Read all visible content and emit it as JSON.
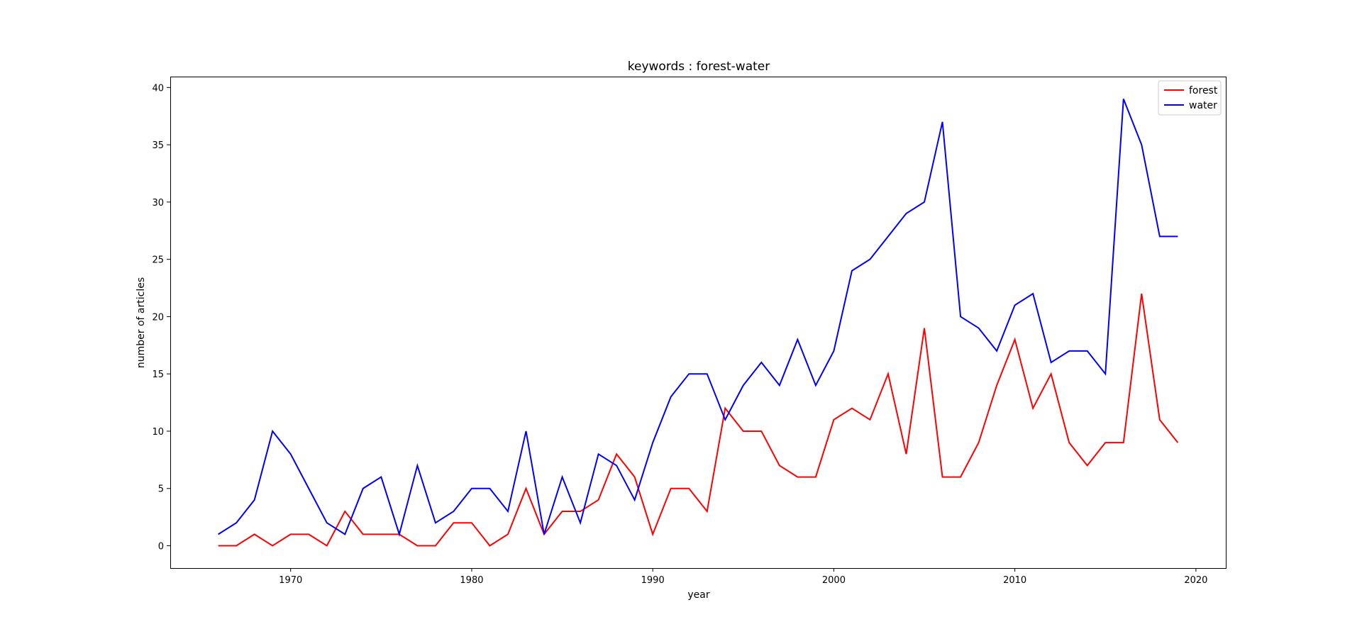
{
  "chart_data": {
    "type": "line",
    "title": "keywords : forest-water",
    "xlabel": "year",
    "ylabel": "number of articles",
    "xlim": [
      1963.35,
      2021.65
    ],
    "ylim": [
      -1.95,
      40.95
    ],
    "xticks": [
      1970,
      1980,
      1990,
      2000,
      2010,
      2020
    ],
    "yticks": [
      0,
      5,
      10,
      15,
      20,
      25,
      30,
      35,
      40
    ],
    "grid": false,
    "legend_position": "top-right",
    "x": [
      1966,
      1967,
      1968,
      1969,
      1970,
      1971,
      1972,
      1973,
      1974,
      1975,
      1976,
      1977,
      1978,
      1979,
      1980,
      1981,
      1982,
      1983,
      1984,
      1985,
      1986,
      1987,
      1988,
      1989,
      1990,
      1991,
      1992,
      1993,
      1994,
      1995,
      1996,
      1997,
      1998,
      1999,
      2000,
      2001,
      2002,
      2003,
      2004,
      2005,
      2006,
      2007,
      2008,
      2009,
      2010,
      2011,
      2012,
      2013,
      2014,
      2015,
      2016,
      2017,
      2018,
      2019
    ],
    "series": [
      {
        "name": "forest",
        "color": "#ff0000",
        "values": [
          0,
          0,
          1,
          0,
          1,
          1,
          0,
          3,
          1,
          1,
          1,
          0,
          0,
          2,
          2,
          0,
          1,
          5,
          1,
          3,
          3,
          4,
          8,
          6,
          1,
          5,
          5,
          3,
          12,
          10,
          10,
          7,
          6,
          6,
          11,
          12,
          11,
          15,
          8,
          19,
          6,
          6,
          9,
          14,
          18,
          12,
          15,
          9,
          7,
          9,
          9,
          22,
          11,
          9
        ]
      },
      {
        "name": "water",
        "color": "#0000ff",
        "values": [
          1,
          2,
          4,
          10,
          8,
          5,
          2,
          1,
          5,
          6,
          1,
          7,
          2,
          3,
          5,
          5,
          3,
          10,
          1,
          6,
          2,
          8,
          7,
          4,
          9,
          13,
          15,
          15,
          11,
          14,
          16,
          14,
          18,
          14,
          17,
          24,
          25,
          27,
          29,
          30,
          37,
          20,
          19,
          17,
          21,
          22,
          16,
          17,
          17,
          15,
          39,
          35,
          27,
          27
        ]
      }
    ]
  }
}
